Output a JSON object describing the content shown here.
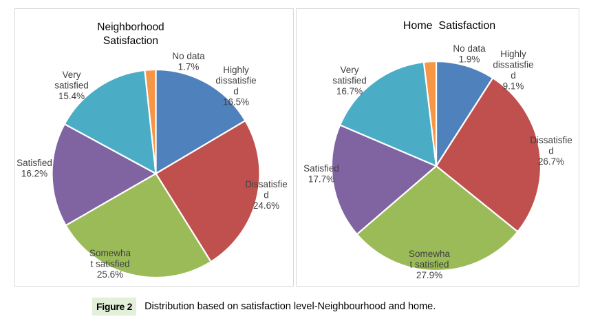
{
  "chart_data": [
    {
      "type": "pie",
      "title": "Neighborhood Satisfaction",
      "title_lines": [
        "Neighborhood",
        "Satisfaction"
      ],
      "start": "12 o'clock",
      "direction": "clockwise",
      "slices": [
        {
          "label": "Highly dissatisfied",
          "label_lines": [
            "Highly",
            "dissatisfie",
            "d"
          ],
          "value": 16.5,
          "value_text": "16.5%",
          "color": "#4f81bd"
        },
        {
          "label": "Dissatisfied",
          "label_lines": [
            "Dissatisfie",
            "d"
          ],
          "value": 24.6,
          "value_text": "24.6%",
          "color": "#c0504d"
        },
        {
          "label": "Somewhat satisfied",
          "label_lines": [
            "Somewha",
            "t satisfied"
          ],
          "value": 25.6,
          "value_text": "25.6%",
          "color": "#9bbb59"
        },
        {
          "label": "Satisfied",
          "label_lines": [
            "Satisfied"
          ],
          "value": 16.2,
          "value_text": "16.2%",
          "color": "#8064a2"
        },
        {
          "label": "Very satisfied",
          "label_lines": [
            "Very",
            "satisfied"
          ],
          "value": 15.4,
          "value_text": "15.4%",
          "color": "#4bacc6"
        },
        {
          "label": "No data",
          "label_lines": [
            "No data"
          ],
          "value": 1.7,
          "value_text": "1.7%",
          "color": "#f79646"
        }
      ]
    },
    {
      "type": "pie",
      "title": "Home Satisfaction",
      "title_lines": [
        "Home  Satisfaction"
      ],
      "start": "12 o'clock",
      "direction": "clockwise",
      "slices": [
        {
          "label": "Highly dissatisfied",
          "label_lines": [
            "Highly",
            "dissatisfie",
            "d"
          ],
          "value": 9.1,
          "value_text": "9.1%",
          "color": "#4f81bd"
        },
        {
          "label": "Dissatisfied",
          "label_lines": [
            "Dissatisfie",
            "d"
          ],
          "value": 26.7,
          "value_text": "26.7%",
          "color": "#c0504d"
        },
        {
          "label": "Somewhat satisfied",
          "label_lines": [
            "Somewha",
            "t satisfied"
          ],
          "value": 27.9,
          "value_text": "27.9%",
          "color": "#9bbb59"
        },
        {
          "label": "Satisfied",
          "label_lines": [
            "Satisfied"
          ],
          "value": 17.7,
          "value_text": "17.7%",
          "color": "#8064a2"
        },
        {
          "label": "Very satisfied",
          "label_lines": [
            "Very",
            "satisfied"
          ],
          "value": 16.7,
          "value_text": "16.7%",
          "color": "#4bacc6"
        },
        {
          "label": "No data",
          "label_lines": [
            "No data"
          ],
          "value": 1.9,
          "value_text": "1.9%",
          "color": "#f79646"
        }
      ]
    }
  ],
  "caption": {
    "badge": "Figure 2",
    "text": "Distribution based on satisfaction level-Neighbourhood and home.",
    "badge_color": "#e2efd9"
  }
}
